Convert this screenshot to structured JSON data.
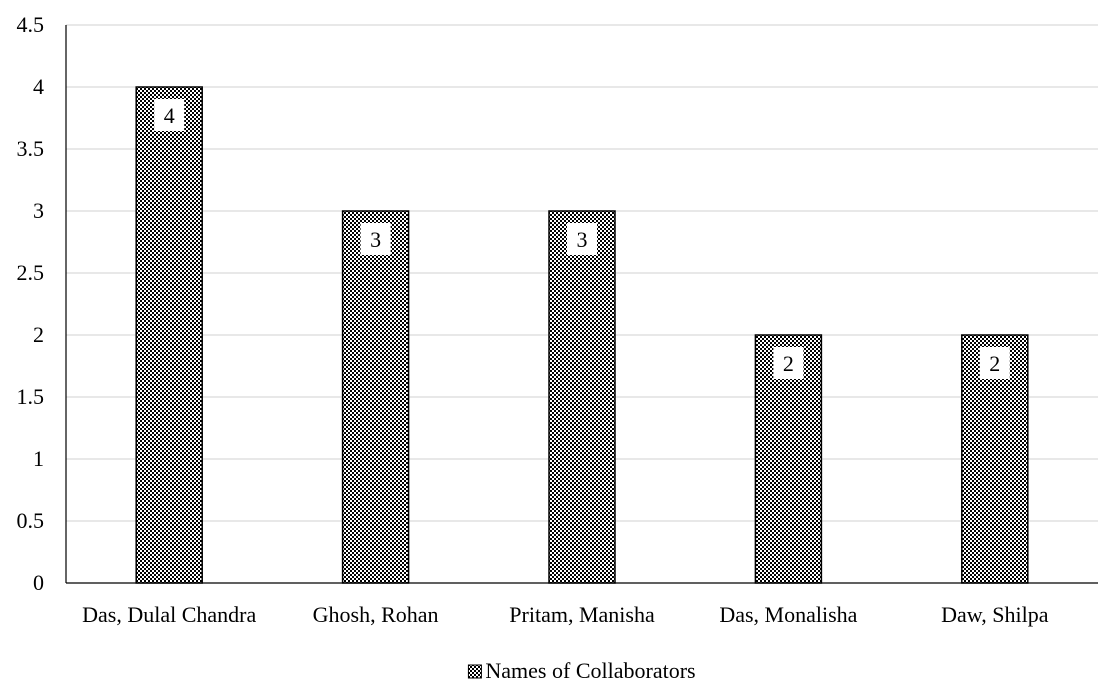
{
  "chart_data": {
    "type": "bar",
    "categories": [
      "Das, Dulal Chandra",
      "Ghosh, Rohan",
      "Pritam, Manisha",
      "Das, Monalisha",
      "Daw, Shilpa"
    ],
    "series": [
      {
        "name": "Names of Collaborators",
        "values": [
          4,
          3,
          3,
          2,
          2
        ]
      }
    ],
    "data_labels": [
      "4",
      "3",
      "3",
      "2",
      "2"
    ],
    "title": "",
    "xlabel": "",
    "ylabel": "",
    "ylim": [
      0,
      4.5
    ],
    "yticks": [
      0,
      0.5,
      1,
      1.5,
      2,
      2.5,
      3,
      3.5,
      4,
      4.5
    ],
    "ytick_labels": [
      "0",
      "0.5",
      "1",
      "1.5",
      "2",
      "2.5",
      "3",
      "3.5",
      "4",
      "4.5"
    ],
    "grid": true,
    "legend_position": "bottom",
    "bar_pattern": "checkered",
    "colors": {
      "bar_fill": "#ffffff",
      "bar_pattern": "#000000",
      "gridline": "#d9d9d9",
      "axis": "#000000",
      "text": "#000000"
    }
  }
}
